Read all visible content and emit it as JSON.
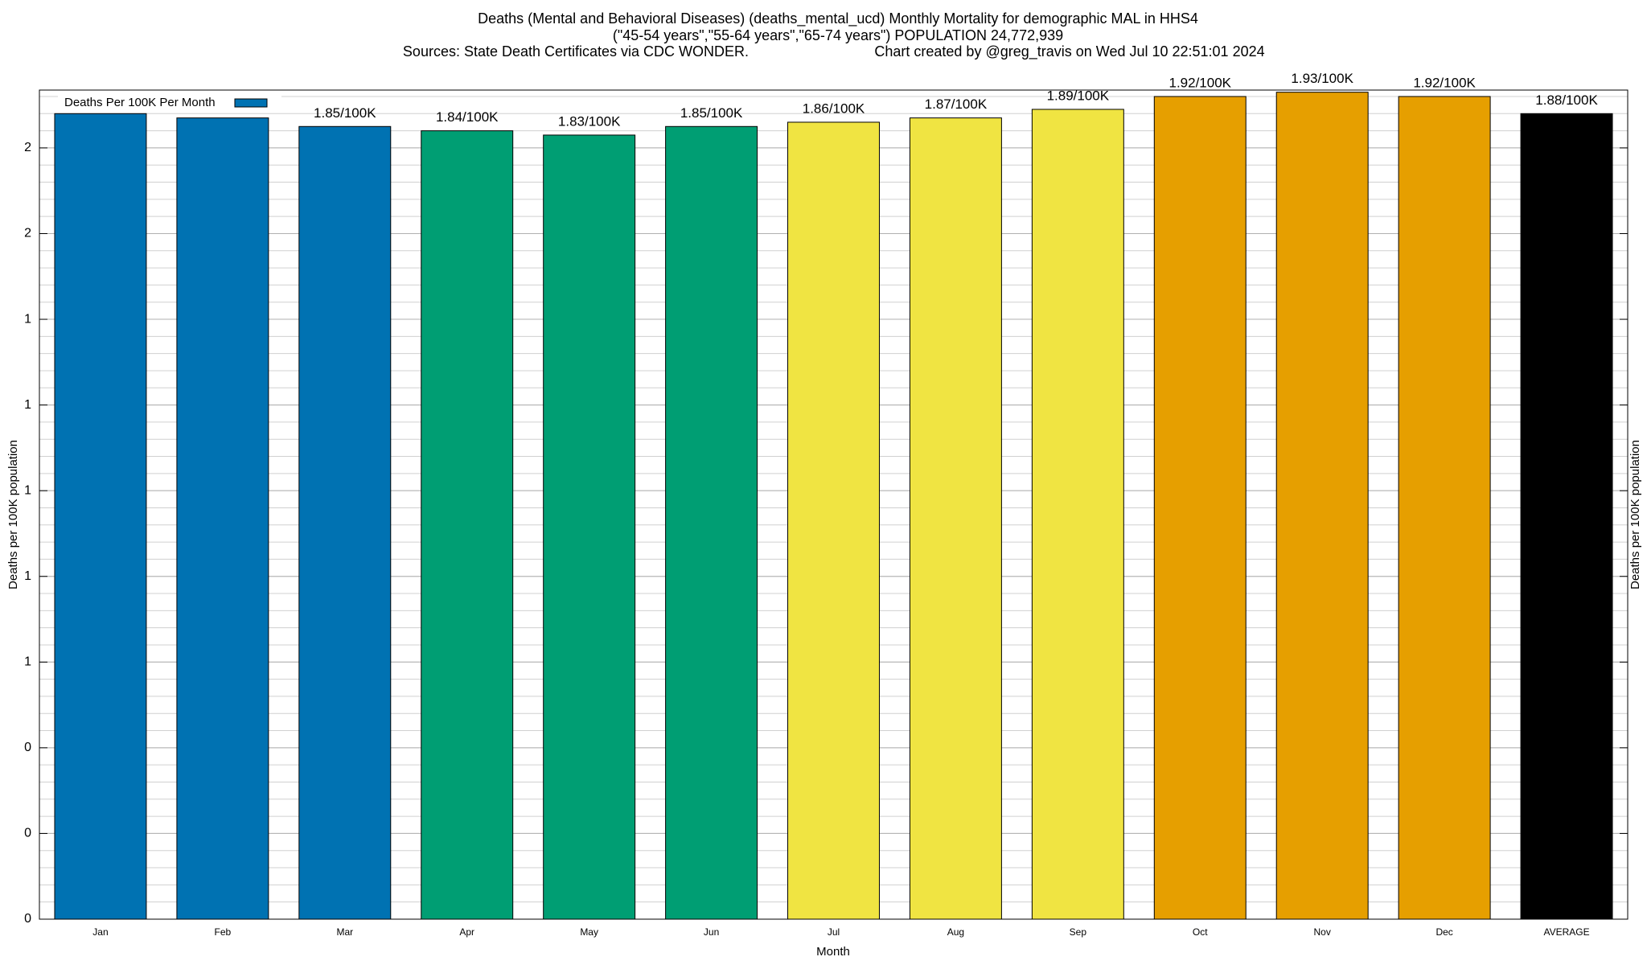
{
  "chart_data": {
    "type": "bar",
    "title_lines": [
      "Deaths (Mental and Behavioral Diseases) (deaths_mental_ucd) Monthly Mortality for demographic MAL in HHS4",
      "(\"45-54 years\",\"55-64 years\",\"65-74 years\") POPULATION 24,772,939"
    ],
    "source": "Sources: State Death Certificates via CDC WONDER.",
    "credit": "Chart created by @greg_travis on Wed Jul 10 22:51:01 2024",
    "xlabel": "Month",
    "ylabel": "Deaths per 100K population",
    "y2label": "Deaths per 100K population",
    "legend": "Deaths Per 100K Per Month",
    "legend_color": "#0072b2",
    "categories": [
      "Jan",
      "Feb",
      "Mar",
      "Apr",
      "May",
      "Jun",
      "Jul",
      "Aug",
      "Sep",
      "Oct",
      "Nov",
      "Dec",
      "AVERAGE"
    ],
    "values": [
      1.88,
      1.87,
      1.85,
      1.84,
      1.83,
      1.85,
      1.86,
      1.87,
      1.89,
      1.92,
      1.93,
      1.92,
      1.88
    ],
    "value_labels": [
      null,
      null,
      "1.85/100K",
      "1.84/100K",
      "1.83/100K",
      "1.85/100K",
      "1.86/100K",
      "1.87/100K",
      "1.89/100K",
      "1.92/100K",
      "1.93/100K",
      "1.92/100K",
      "1.88/100K"
    ],
    "colors": [
      "#0072b2",
      "#0072b2",
      "#0072b2",
      "#009e73",
      "#009e73",
      "#009e73",
      "#f0e442",
      "#f0e442",
      "#f0e442",
      "#e69f00",
      "#e69f00",
      "#e69f00",
      "#000000"
    ],
    "ylim": [
      0,
      1.935
    ],
    "yticks": [
      {
        "value": 0,
        "label": "0"
      },
      {
        "value": 0.2,
        "label": "0"
      },
      {
        "value": 0.4,
        "label": "0"
      },
      {
        "value": 0.6,
        "label": "1"
      },
      {
        "value": 0.8,
        "label": "1"
      },
      {
        "value": 1.0,
        "label": "1"
      },
      {
        "value": 1.2,
        "label": "1"
      },
      {
        "value": 1.4,
        "label": "1"
      },
      {
        "value": 1.6,
        "label": "2"
      },
      {
        "value": 1.8,
        "label": "2"
      }
    ],
    "grid": true
  }
}
